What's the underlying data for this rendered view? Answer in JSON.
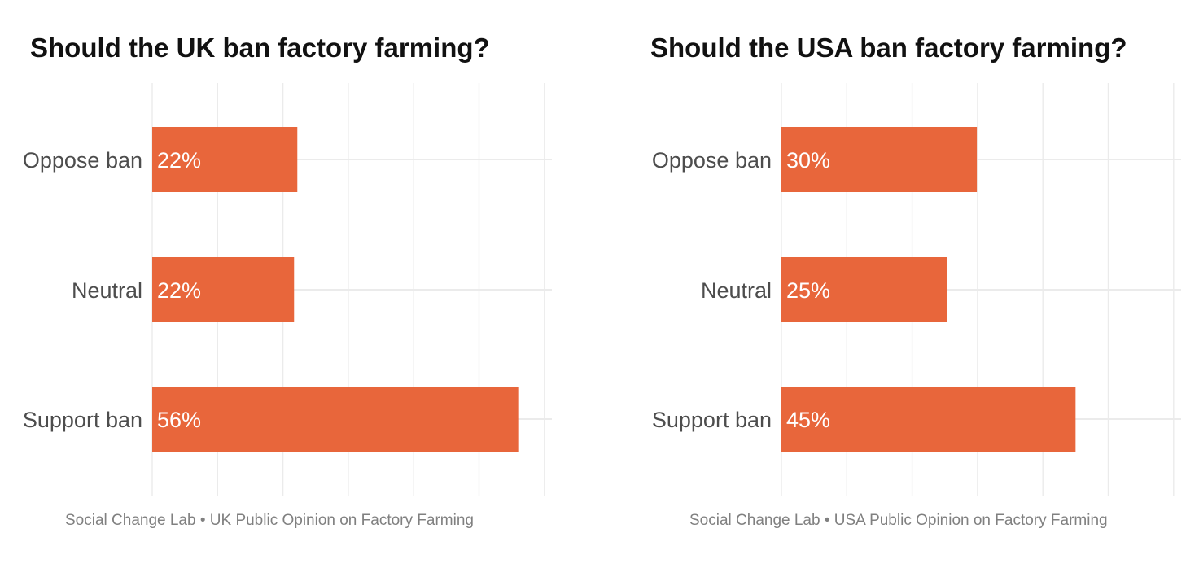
{
  "colors": {
    "bar": "#e8663b",
    "grid": "#ebebeb"
  },
  "chart_data": [
    {
      "type": "bar",
      "orientation": "horizontal",
      "title": "Should the UK ban factory farming?",
      "caption": "Social Change Lab • UK Public Opinion on Factory Farming",
      "categories": [
        "Oppose ban",
        "Neutral",
        "Support ban"
      ],
      "values": [
        22.2,
        21.7,
        56.0
      ],
      "labels": [
        "22%",
        "22%",
        "56%"
      ],
      "xlim": [
        0,
        60
      ],
      "grid": true
    },
    {
      "type": "bar",
      "orientation": "horizontal",
      "title": "Should the USA ban factory farming?",
      "caption": "Social Change Lab • USA Public Opinion on Factory Farming",
      "categories": [
        "Oppose ban",
        "Neutral",
        "Support ban"
      ],
      "values": [
        29.9,
        25.4,
        45.0
      ],
      "labels": [
        "30%",
        "25%",
        "45%"
      ],
      "xlim": [
        0,
        60
      ],
      "grid": true
    }
  ]
}
